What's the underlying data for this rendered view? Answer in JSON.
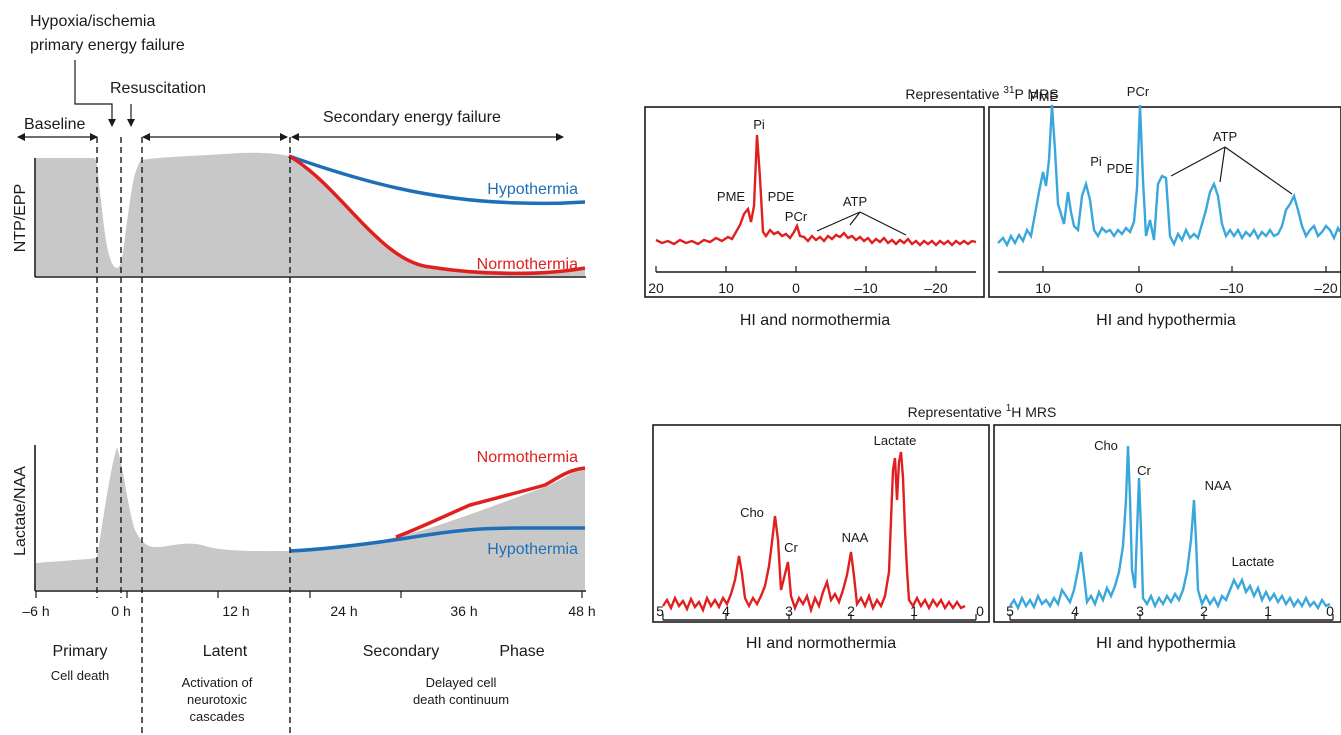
{
  "colors": {
    "normothermia": "#e02020",
    "hypothermia": "#1f6fb8",
    "spectrum_hypothermia": "#3aa7dc",
    "area_fill": "#c8c8c8",
    "text": "#1a1a1a"
  },
  "timeline": {
    "labels": {
      "hypoxia_line1": "Hypoxia/ischemia",
      "hypoxia_line2": "primary energy failure",
      "resuscitation": "Resuscitation",
      "baseline": "Baseline",
      "secondary_energy_failure": "Secondary energy failure"
    },
    "top_panel": {
      "ylabel": "NTP/EPP",
      "hypothermia": "Hypothermia",
      "normothermia": "Normothermia"
    },
    "bottom_panel": {
      "ylabel": "Lactate/NAA",
      "normothermia": "Normothermia",
      "hypothermia": "Hypothermia"
    },
    "x_ticks": [
      "–6 h",
      "0 h",
      "12 h",
      "24 h",
      "36 h",
      "48 h"
    ],
    "phases": {
      "primary": "Primary",
      "primary_sub": "Cell death",
      "latent": "Latent",
      "latent_sub1": "Activation of",
      "latent_sub2": "neurotoxic",
      "latent_sub3": "cascades",
      "secondary": "Secondary",
      "phase": "Phase",
      "secondary_sub1": "Delayed cell",
      "secondary_sub2": "death continuum"
    }
  },
  "p31": {
    "title_prefix": "Representative ",
    "title_sup": "31",
    "title_suffix": "P MRS",
    "normo": {
      "peaks": {
        "pi": "Pi",
        "pme": "PME",
        "pde": "PDE",
        "pcr": "PCr",
        "atp": "ATP"
      },
      "ticks": [
        "20",
        "10",
        "0",
        "–10",
        "–20"
      ],
      "caption": "HI and normothermia"
    },
    "hypo": {
      "peaks": {
        "pme": "PME",
        "pcr": "PCr",
        "pi": "Pi",
        "pde": "PDE",
        "atp": "ATP"
      },
      "ticks": [
        "10",
        "0",
        "–10",
        "–20"
      ],
      "caption": "HI and hypothermia"
    }
  },
  "h1": {
    "title_prefix": "Representative ",
    "title_sup": "1",
    "title_suffix": "H MRS",
    "normo": {
      "peaks": {
        "lactate": "Lactate",
        "cho": "Cho",
        "cr": "Cr",
        "naa": "NAA"
      },
      "ticks": [
        "5",
        "4",
        "3",
        "2",
        "1",
        "0"
      ],
      "caption": "HI and normothermia"
    },
    "hypo": {
      "peaks": {
        "cho": "Cho",
        "cr": "Cr",
        "naa": "NAA",
        "lactate": "Lactate"
      },
      "ticks": [
        "5",
        "4",
        "3",
        "2",
        "1",
        "0"
      ],
      "caption": "HI and hypothermia"
    }
  }
}
